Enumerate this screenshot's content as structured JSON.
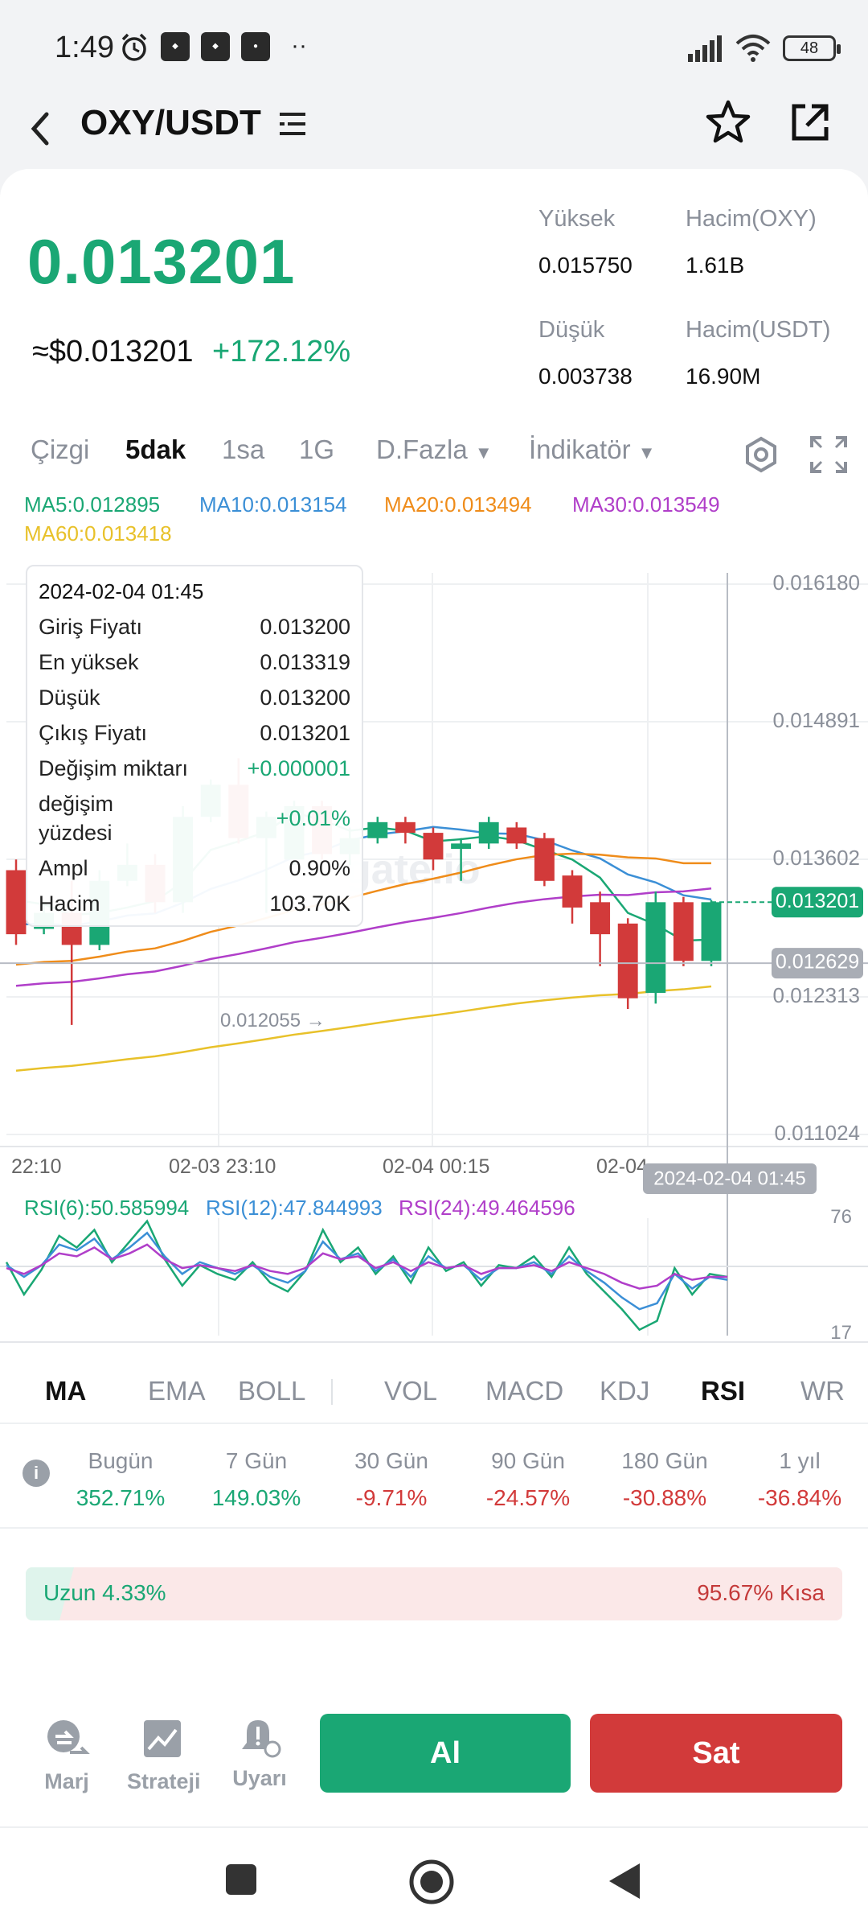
{
  "status_bar": {
    "time": "1:49",
    "battery": "48"
  },
  "header": {
    "pair": "OXY/USDT"
  },
  "ticker": {
    "price": "0.013201",
    "usd_price": "≈$0.013201",
    "change": "+172.12%",
    "high_label": "Yüksek",
    "high": "0.015750",
    "low_label": "Düşük",
    "low": "0.003738",
    "vol_base_label": "Hacim(OXY)",
    "vol_base": "1.61B",
    "vol_quote_label": "Hacim(USDT)",
    "vol_quote": "16.90M"
  },
  "tabs": {
    "line": "Çizgi",
    "m5": "5dak",
    "h1": "1sa",
    "d1": "1G",
    "more": "D.Fazla",
    "indicator": "İndikatör"
  },
  "ma": {
    "ma5": "MA5:0.012895",
    "ma10": "MA10:0.013154",
    "ma20": "MA20:0.013494",
    "ma30": "MA30:0.013549",
    "ma60": "MA60:0.013418",
    "colors": {
      "ma5": "#1aa774",
      "ma10": "#3b8fd6",
      "ma20": "#ef8c1a",
      "ma30": "#b03ec9",
      "ma60": "#e8c12a"
    }
  },
  "tooltip": {
    "date": "2024-02-04 01:45",
    "open_label": "Giriş Fiyatı",
    "open": "0.013200",
    "high_label": "En yüksek",
    "high": "0.013319",
    "low_label": "Düşük",
    "low": "0.013200",
    "close_label": "Çıkış Fiyatı",
    "close": "0.013201",
    "chg_amt_label": "Değişim miktarı",
    "chg_amt": "+0.000001",
    "chg_pct_label_1": "değişim",
    "chg_pct_label_2": "yüzdesi",
    "chg_pct": "+0.01%",
    "ampl_label": "Ampl",
    "ampl": "0.90%",
    "vol_label": "Hacim",
    "vol": "103.70K"
  },
  "chart_data": [
    {
      "type": "candlestick",
      "y_ticks": [
        "0.016180",
        "0.014891",
        "0.013602",
        "0.012313",
        "0.011024"
      ],
      "ylim": [
        0.011024,
        0.01618
      ],
      "x_ticks": [
        "22:10",
        "02-03 23:10",
        "02-04 00:15",
        "02-04"
      ],
      "current_price_tag": "0.013201",
      "crosshair_price_tag": "0.012629",
      "crosshair_time_tag": "2024-02-04 01:45",
      "low_marker": "0.012055 →",
      "watermark": "gate.io",
      "candles": [
        {
          "o": 0.0135,
          "c": 0.0129,
          "h": 0.0136,
          "l": 0.0128
        },
        {
          "o": 0.01295,
          "c": 0.0131,
          "h": 0.0132,
          "l": 0.0129
        },
        {
          "o": 0.0131,
          "c": 0.0128,
          "h": 0.0134,
          "l": 0.01205
        },
        {
          "o": 0.0128,
          "c": 0.0134,
          "h": 0.0135,
          "l": 0.01275
        },
        {
          "o": 0.0134,
          "c": 0.01355,
          "h": 0.01375,
          "l": 0.01335
        },
        {
          "o": 0.01355,
          "c": 0.0132,
          "h": 0.01365,
          "l": 0.0131
        },
        {
          "o": 0.0132,
          "c": 0.014,
          "h": 0.0141,
          "l": 0.0131
        },
        {
          "o": 0.014,
          "c": 0.0143,
          "h": 0.01435,
          "l": 0.01395
        },
        {
          "o": 0.0143,
          "c": 0.0138,
          "h": 0.01455,
          "l": 0.01375
        },
        {
          "o": 0.0138,
          "c": 0.014,
          "h": 0.01405,
          "l": 0.0131
        },
        {
          "o": 0.0136,
          "c": 0.0141,
          "h": 0.01415,
          "l": 0.01355
        },
        {
          "o": 0.0141,
          "c": 0.01365,
          "h": 0.01415,
          "l": 0.0136
        },
        {
          "o": 0.01365,
          "c": 0.0138,
          "h": 0.0139,
          "l": 0.01355
        },
        {
          "o": 0.0138,
          "c": 0.01395,
          "h": 0.014,
          "l": 0.01375
        },
        {
          "o": 0.01395,
          "c": 0.01385,
          "h": 0.014,
          "l": 0.01375
        },
        {
          "o": 0.01385,
          "c": 0.0136,
          "h": 0.0139,
          "l": 0.0135
        },
        {
          "o": 0.0137,
          "c": 0.01375,
          "h": 0.0138,
          "l": 0.0134
        },
        {
          "o": 0.01375,
          "c": 0.01395,
          "h": 0.014,
          "l": 0.0137
        },
        {
          "o": 0.0139,
          "c": 0.01375,
          "h": 0.01395,
          "l": 0.0137
        },
        {
          "o": 0.0138,
          "c": 0.0134,
          "h": 0.01385,
          "l": 0.01335
        },
        {
          "o": 0.01345,
          "c": 0.01315,
          "h": 0.0135,
          "l": 0.013
        },
        {
          "o": 0.0132,
          "c": 0.0129,
          "h": 0.0133,
          "l": 0.0126
        },
        {
          "o": 0.013,
          "c": 0.0123,
          "h": 0.01305,
          "l": 0.0122
        },
        {
          "o": 0.01235,
          "c": 0.0132,
          "h": 0.0133,
          "l": 0.01225
        },
        {
          "o": 0.0132,
          "c": 0.01265,
          "h": 0.01325,
          "l": 0.0126
        },
        {
          "o": 0.01265,
          "c": 0.0132,
          "h": 0.01322,
          "l": 0.0126
        }
      ]
    },
    {
      "type": "line",
      "title": "RSI",
      "series": [
        {
          "name": "RSI(6):50.585994",
          "color": "#1aa774",
          "values": [
            60,
            38,
            55,
            78,
            70,
            82,
            60,
            74,
            88,
            62,
            44,
            58,
            52,
            48,
            60,
            46,
            40,
            54,
            82,
            60,
            70,
            52,
            64,
            46,
            70,
            54,
            60,
            44,
            58,
            56,
            64,
            50,
            70,
            52,
            40,
            28,
            14,
            20,
            56,
            38,
            52,
            50
          ]
        },
        {
          "name": "RSI(12):47.844993",
          "color": "#3b8fd6",
          "values": [
            58,
            50,
            58,
            72,
            68,
            76,
            62,
            70,
            80,
            64,
            52,
            60,
            56,
            52,
            58,
            50,
            46,
            54,
            74,
            62,
            66,
            54,
            62,
            50,
            64,
            56,
            58,
            48,
            56,
            56,
            60,
            52,
            64,
            54,
            46,
            36,
            28,
            32,
            52,
            42,
            50,
            48
          ]
        },
        {
          "name": "RSI(24):49.464596",
          "color": "#b03ec9",
          "values": [
            56,
            52,
            58,
            66,
            64,
            70,
            62,
            66,
            72,
            62,
            56,
            58,
            56,
            54,
            58,
            54,
            52,
            56,
            66,
            62,
            64,
            56,
            60,
            54,
            60,
            56,
            58,
            52,
            56,
            56,
            58,
            54,
            60,
            56,
            52,
            46,
            42,
            44,
            52,
            48,
            50,
            50
          ]
        }
      ],
      "y_ticks": [
        "76",
        "17"
      ]
    }
  ],
  "indicators": {
    "ma": "MA",
    "ema": "EMA",
    "boll": "BOLL",
    "vol": "VOL",
    "macd": "MACD",
    "kdj": "KDJ",
    "rsi": "RSI",
    "wr": "WR"
  },
  "periods": [
    {
      "label": "Bugün",
      "value": "352.71%"
    },
    {
      "label": "7 Gün",
      "value": "149.03%"
    },
    {
      "label": "30 Gün",
      "value": "-9.71%"
    },
    {
      "label": "90 Gün",
      "value": "-24.57%"
    },
    {
      "label": "180 Gün",
      "value": "-30.88%"
    },
    {
      "label": "1 yıl",
      "value": "-36.84%"
    }
  ],
  "long_short": {
    "long": "Uzun 4.33%",
    "short": "95.67% Kısa",
    "long_ratio": 0.0433
  },
  "actions": {
    "margin": "Marj",
    "strategy": "Strateji",
    "alert": "Uyarı",
    "buy": "Al",
    "sell": "Sat"
  }
}
